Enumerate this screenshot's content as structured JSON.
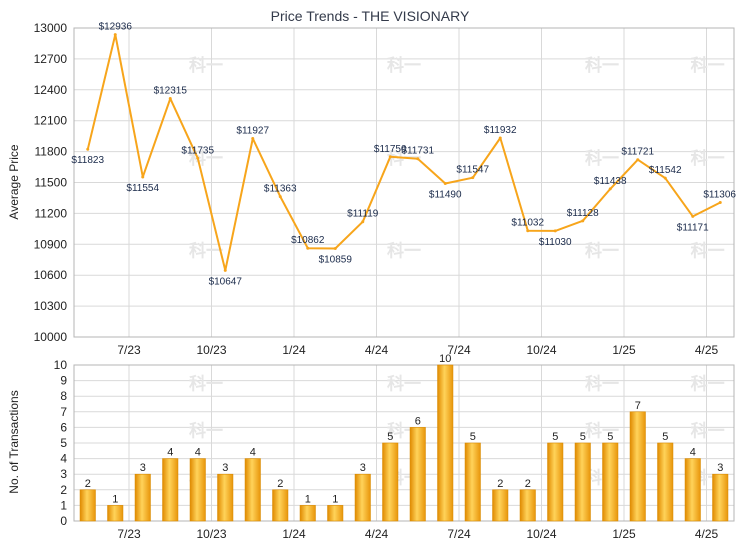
{
  "watermark": "科一",
  "chart_data": [
    {
      "type": "line",
      "title": "Price Trends - THE VISIONARY",
      "ylabel": "Average Price",
      "ylim": [
        10000,
        13000
      ],
      "yticks": [
        10000,
        10300,
        10600,
        10900,
        11200,
        11500,
        11800,
        12100,
        12400,
        12700,
        13000
      ],
      "xlim": [
        0,
        24
      ],
      "xticks": [
        {
          "pos": 2,
          "label": "7/23"
        },
        {
          "pos": 5,
          "label": "10/23"
        },
        {
          "pos": 8,
          "label": "1/24"
        },
        {
          "pos": 11,
          "label": "4/24"
        },
        {
          "pos": 14,
          "label": "7/24"
        },
        {
          "pos": 17,
          "label": "10/24"
        },
        {
          "pos": 20,
          "label": "1/25"
        },
        {
          "pos": 23,
          "label": "4/25"
        }
      ],
      "color": "#f7a51b",
      "values": [
        11823,
        12936,
        11554,
        12315,
        11735,
        10647,
        11927,
        11363,
        10862,
        10859,
        11119,
        11750,
        11731,
        11490,
        11547,
        11932,
        11032,
        11030,
        11128,
        11438,
        11721,
        11542,
        11171,
        11306
      ],
      "labels": [
        "$11823",
        "$12936",
        "$11554",
        "$12315",
        "$11735",
        "$10647",
        "$11927",
        "$11363",
        "$10862",
        "$10859",
        "$11119",
        "$11750",
        "$11731",
        "$11490",
        "$11547",
        "$11932",
        "$11032",
        "$11030",
        "$11128",
        "$11438",
        "$11721",
        "$11542",
        "$11171",
        "$11306"
      ]
    },
    {
      "type": "bar",
      "ylabel": "No. of Transactions",
      "ylim": [
        0,
        10
      ],
      "yticks": [
        0,
        1,
        2,
        3,
        4,
        5,
        6,
        7,
        8,
        9,
        10
      ],
      "xlim": [
        0,
        24
      ],
      "xticks": [
        {
          "pos": 2,
          "label": "7/23"
        },
        {
          "pos": 5,
          "label": "10/23"
        },
        {
          "pos": 8,
          "label": "1/24"
        },
        {
          "pos": 11,
          "label": "4/24"
        },
        {
          "pos": 14,
          "label": "7/24"
        },
        {
          "pos": 17,
          "label": "10/24"
        },
        {
          "pos": 20,
          "label": "1/25"
        },
        {
          "pos": 23,
          "label": "4/25"
        }
      ],
      "color": "#f7a51b",
      "values": [
        2,
        1,
        3,
        4,
        4,
        3,
        4,
        2,
        1,
        1,
        3,
        5,
        6,
        10,
        5,
        2,
        2,
        5,
        5,
        5,
        7,
        5,
        4,
        3
      ]
    }
  ]
}
